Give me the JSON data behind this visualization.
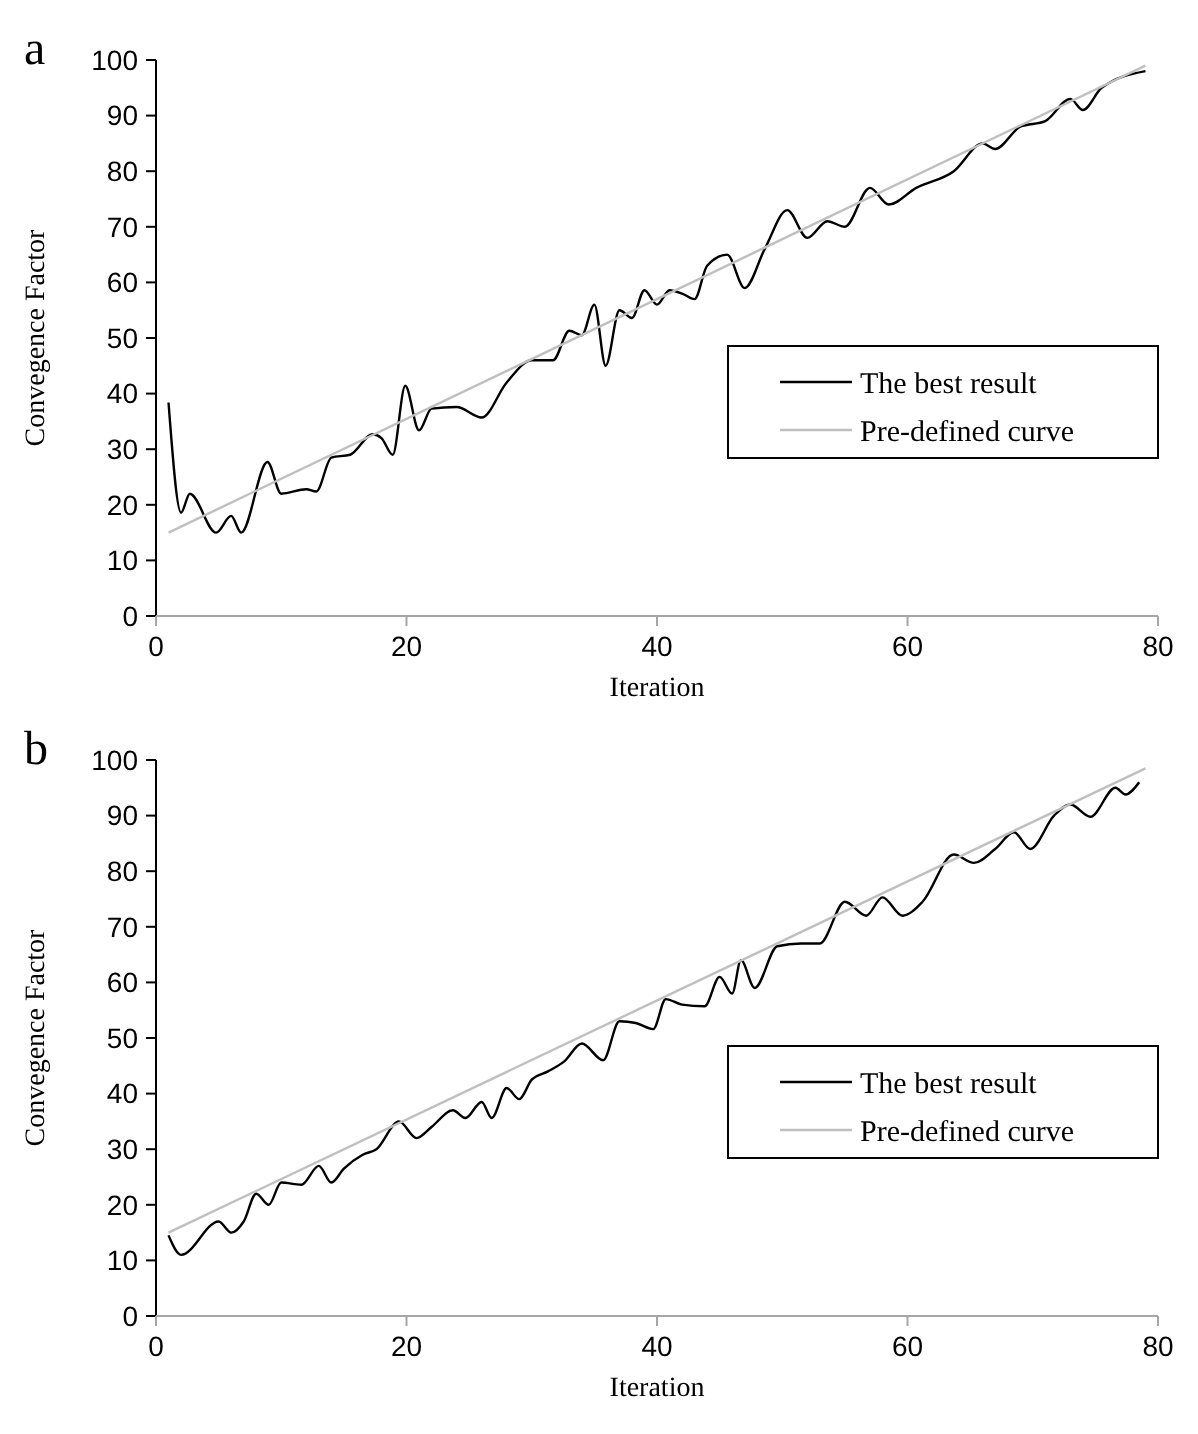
{
  "chart_data": [
    {
      "type": "line",
      "title": "a",
      "xlabel": "Iteration",
      "ylabel": "Convegence Factor",
      "xlim": [
        0,
        80
      ],
      "ylim": [
        0,
        100
      ],
      "xticks": [
        0,
        20,
        40,
        60,
        80
      ],
      "yticks": [
        0,
        10,
        20,
        30,
        40,
        50,
        60,
        70,
        80,
        90,
        100
      ],
      "grid": false,
      "legend": "right",
      "marker": "none",
      "series": [
        {
          "name": "The best result",
          "color": "#000000",
          "x": [
            1,
            2,
            2.7,
            4.8,
            6,
            6.8,
            8.9,
            10,
            12,
            12.8,
            14,
            15.5,
            17.3,
            18,
            18.9,
            19.9,
            21,
            22,
            24,
            26,
            28,
            30,
            31.7,
            33,
            34,
            35,
            35.9,
            37,
            38,
            39,
            40,
            41,
            42,
            43,
            44,
            45.6,
            47,
            48.6,
            50.4,
            52,
            53.6,
            55,
            57,
            58.5,
            60.7,
            63.7,
            66,
            67,
            69,
            71,
            73,
            74,
            75.5,
            79
          ],
          "values": [
            38.4,
            18.6,
            22,
            15,
            18,
            15,
            27.7,
            22,
            22.8,
            22.4,
            28.5,
            29,
            32.7,
            32,
            29,
            41.4,
            33.4,
            37.3,
            37.6,
            35.7,
            42,
            46,
            46,
            51.3,
            50.5,
            56,
            45,
            55,
            53.6,
            58.6,
            56,
            58.6,
            58,
            57,
            63,
            65,
            59,
            66,
            73,
            68,
            71,
            70,
            77,
            74,
            77,
            80,
            85,
            84,
            88,
            89,
            93,
            91,
            95,
            98
          ]
        },
        {
          "name": "Pre-defined curve",
          "color": "#bfbfbf",
          "x": [
            1,
            79
          ],
          "values": [
            15,
            99
          ]
        }
      ]
    },
    {
      "type": "line",
      "title": "b",
      "xlabel": "Iteration",
      "ylabel": "Convegence Factor",
      "xlim": [
        0,
        80
      ],
      "ylim": [
        0,
        100
      ],
      "xticks": [
        0,
        20,
        40,
        60,
        80
      ],
      "yticks": [
        0,
        10,
        20,
        30,
        40,
        50,
        60,
        70,
        80,
        90,
        100
      ],
      "grid": false,
      "legend": "right",
      "marker": "none",
      "series": [
        {
          "name": "The best result",
          "color": "#000000",
          "x": [
            1,
            2,
            5,
            6,
            7,
            8,
            9,
            10,
            11.6,
            13,
            14,
            15,
            16.5,
            17.6,
            19.4,
            20.8,
            22,
            23.7,
            24.7,
            26,
            26.8,
            28,
            29,
            30,
            31.3,
            32.6,
            34,
            35.7,
            37,
            38.3,
            39.7,
            40.7,
            42,
            43.8,
            45,
            46,
            46.7,
            47.8,
            49.6,
            51.5,
            53,
            55,
            56.7,
            58,
            59.6,
            61.2,
            63.7,
            65.3,
            67,
            68.5,
            69.8,
            71.7,
            73,
            74.6,
            76.6,
            77.4,
            78.5
          ],
          "values": [
            14.5,
            11,
            17,
            15,
            17,
            22,
            20,
            24,
            23.6,
            27,
            24,
            26.5,
            29,
            30,
            35,
            32,
            34,
            37,
            35.6,
            38.5,
            35.6,
            41,
            39,
            42.5,
            44,
            45.8,
            49,
            46,
            53,
            52.7,
            51.6,
            57,
            56,
            55.7,
            61,
            58,
            64,
            59,
            66.5,
            67,
            67,
            74.5,
            72,
            75.3,
            72,
            74.5,
            83,
            81.5,
            84,
            87,
            84,
            90,
            92,
            89.8,
            95,
            93.8,
            96
          ]
        },
        {
          "name": "Pre-defined curve",
          "color": "#bfbfbf",
          "x": [
            1,
            79
          ],
          "values": [
            15,
            98.5
          ]
        }
      ]
    }
  ]
}
